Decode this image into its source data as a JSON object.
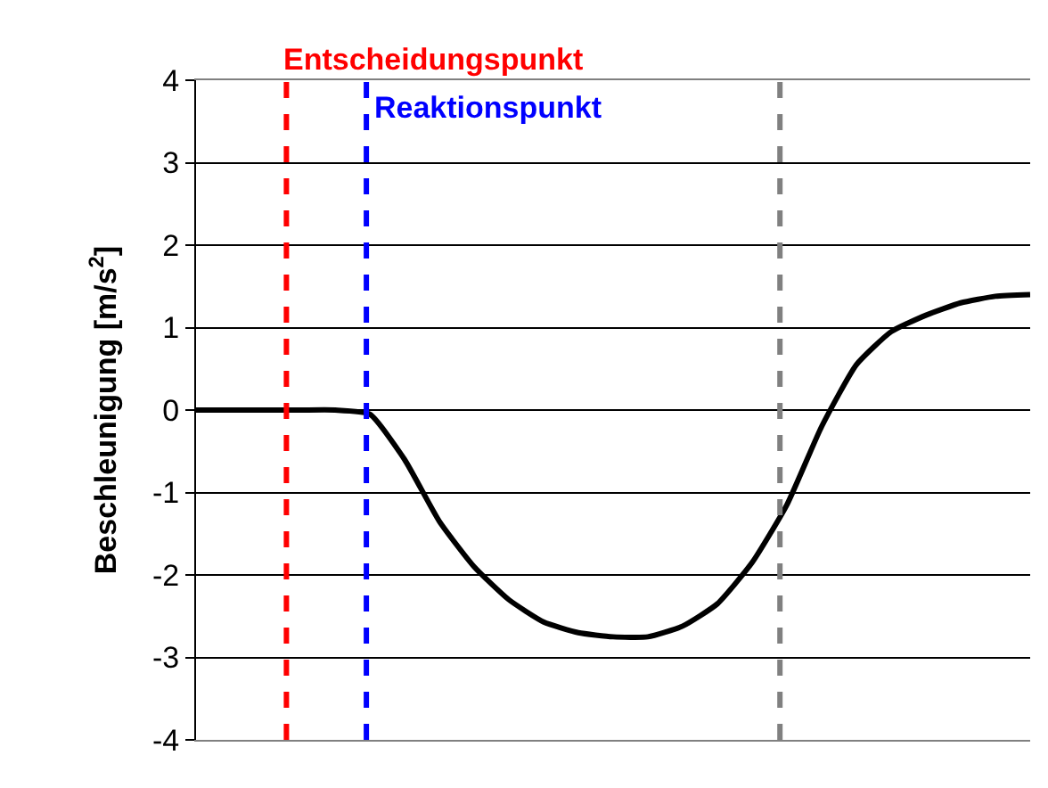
{
  "chart_data": {
    "type": "line",
    "ylabel": "Beschleunigung [m/s$^{2}$]",
    "categories": [
      null,
      null,
      null,
      null,
      null,
      null,
      null,
      null,
      null,
      null,
      null,
      null,
      null,
      null,
      null,
      null,
      null,
      null,
      null,
      null,
      null,
      null,
      null,
      null,
      null
    ],
    "series": [
      {
        "color": "#000000",
        "values": [
          0,
          0,
          0,
          0,
          0,
          -0.05,
          -0.6,
          -1.35,
          -1.9,
          -2.3,
          -2.57,
          -2.7,
          -2.75,
          -2.75,
          -2.62,
          -2.35,
          -1.85,
          -1.15,
          -0.2,
          0.55,
          0.95,
          1.15,
          1.3,
          1.38,
          1.4
        ]
      }
    ],
    "ylim": [
      -4,
      4
    ],
    "yticks": [
      -4,
      -3,
      -2,
      -1,
      0,
      1,
      2,
      3,
      4
    ],
    "tick_labels": "y",
    "grid": "y",
    "marker": "none",
    "line_style": "solid",
    "annotations": [
      "Entscheidungspunkt",
      "Reaktionspunkt"
    ]
  }
}
